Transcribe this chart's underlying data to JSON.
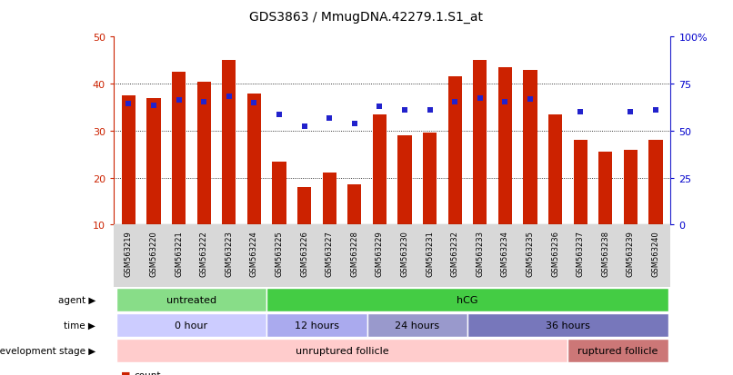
{
  "title": "GDS3863 / MmugDNA.42279.1.S1_at",
  "samples": [
    "GSM563219",
    "GSM563220",
    "GSM563221",
    "GSM563222",
    "GSM563223",
    "GSM563224",
    "GSM563225",
    "GSM563226",
    "GSM563227",
    "GSM563228",
    "GSM563229",
    "GSM563230",
    "GSM563231",
    "GSM563232",
    "GSM563233",
    "GSM563234",
    "GSM563235",
    "GSM563236",
    "GSM563237",
    "GSM563238",
    "GSM563239",
    "GSM563240"
  ],
  "counts": [
    37.5,
    37.0,
    42.5,
    40.5,
    45.0,
    38.0,
    23.5,
    18.0,
    21.0,
    18.5,
    33.5,
    29.0,
    29.5,
    41.5,
    45.0,
    43.5,
    43.0,
    33.5,
    28.0,
    25.5,
    26.0,
    28.0
  ],
  "percentile_ranks": [
    64.5,
    63.5,
    66.5,
    65.5,
    68.5,
    65.0,
    58.5,
    52.5,
    56.5,
    54.0,
    63.0,
    61.0,
    61.0,
    65.5,
    67.5,
    65.5,
    67.0,
    null,
    60.0,
    null,
    60.0,
    61.0
  ],
  "bar_color": "#cc2200",
  "dot_color": "#2222cc",
  "ylim_left": [
    10,
    50
  ],
  "ylim_right": [
    0,
    100
  ],
  "yticks_left": [
    10,
    20,
    30,
    40,
    50
  ],
  "yticks_right": [
    0,
    25,
    50,
    75,
    100
  ],
  "ytick_labels_right": [
    "0",
    "25",
    "50",
    "75",
    "100%"
  ],
  "agent_groups": [
    {
      "label": "untreated",
      "start": 0,
      "end": 6,
      "color": "#88dd88"
    },
    {
      "label": "hCG",
      "start": 6,
      "end": 22,
      "color": "#44cc44"
    }
  ],
  "time_groups": [
    {
      "label": "0 hour",
      "start": 0,
      "end": 6,
      "color": "#ccccff"
    },
    {
      "label": "12 hours",
      "start": 6,
      "end": 10,
      "color": "#aaaaee"
    },
    {
      "label": "24 hours",
      "start": 10,
      "end": 14,
      "color": "#9999cc"
    },
    {
      "label": "36 hours",
      "start": 14,
      "end": 22,
      "color": "#7777bb"
    }
  ],
  "stage_groups": [
    {
      "label": "unruptured follicle",
      "start": 0,
      "end": 18,
      "color": "#ffcccc"
    },
    {
      "label": "ruptured follicle",
      "start": 18,
      "end": 22,
      "color": "#cc7777"
    }
  ],
  "legend_count_color": "#cc2200",
  "legend_dot_color": "#2222cc",
  "background_color": "#ffffff"
}
